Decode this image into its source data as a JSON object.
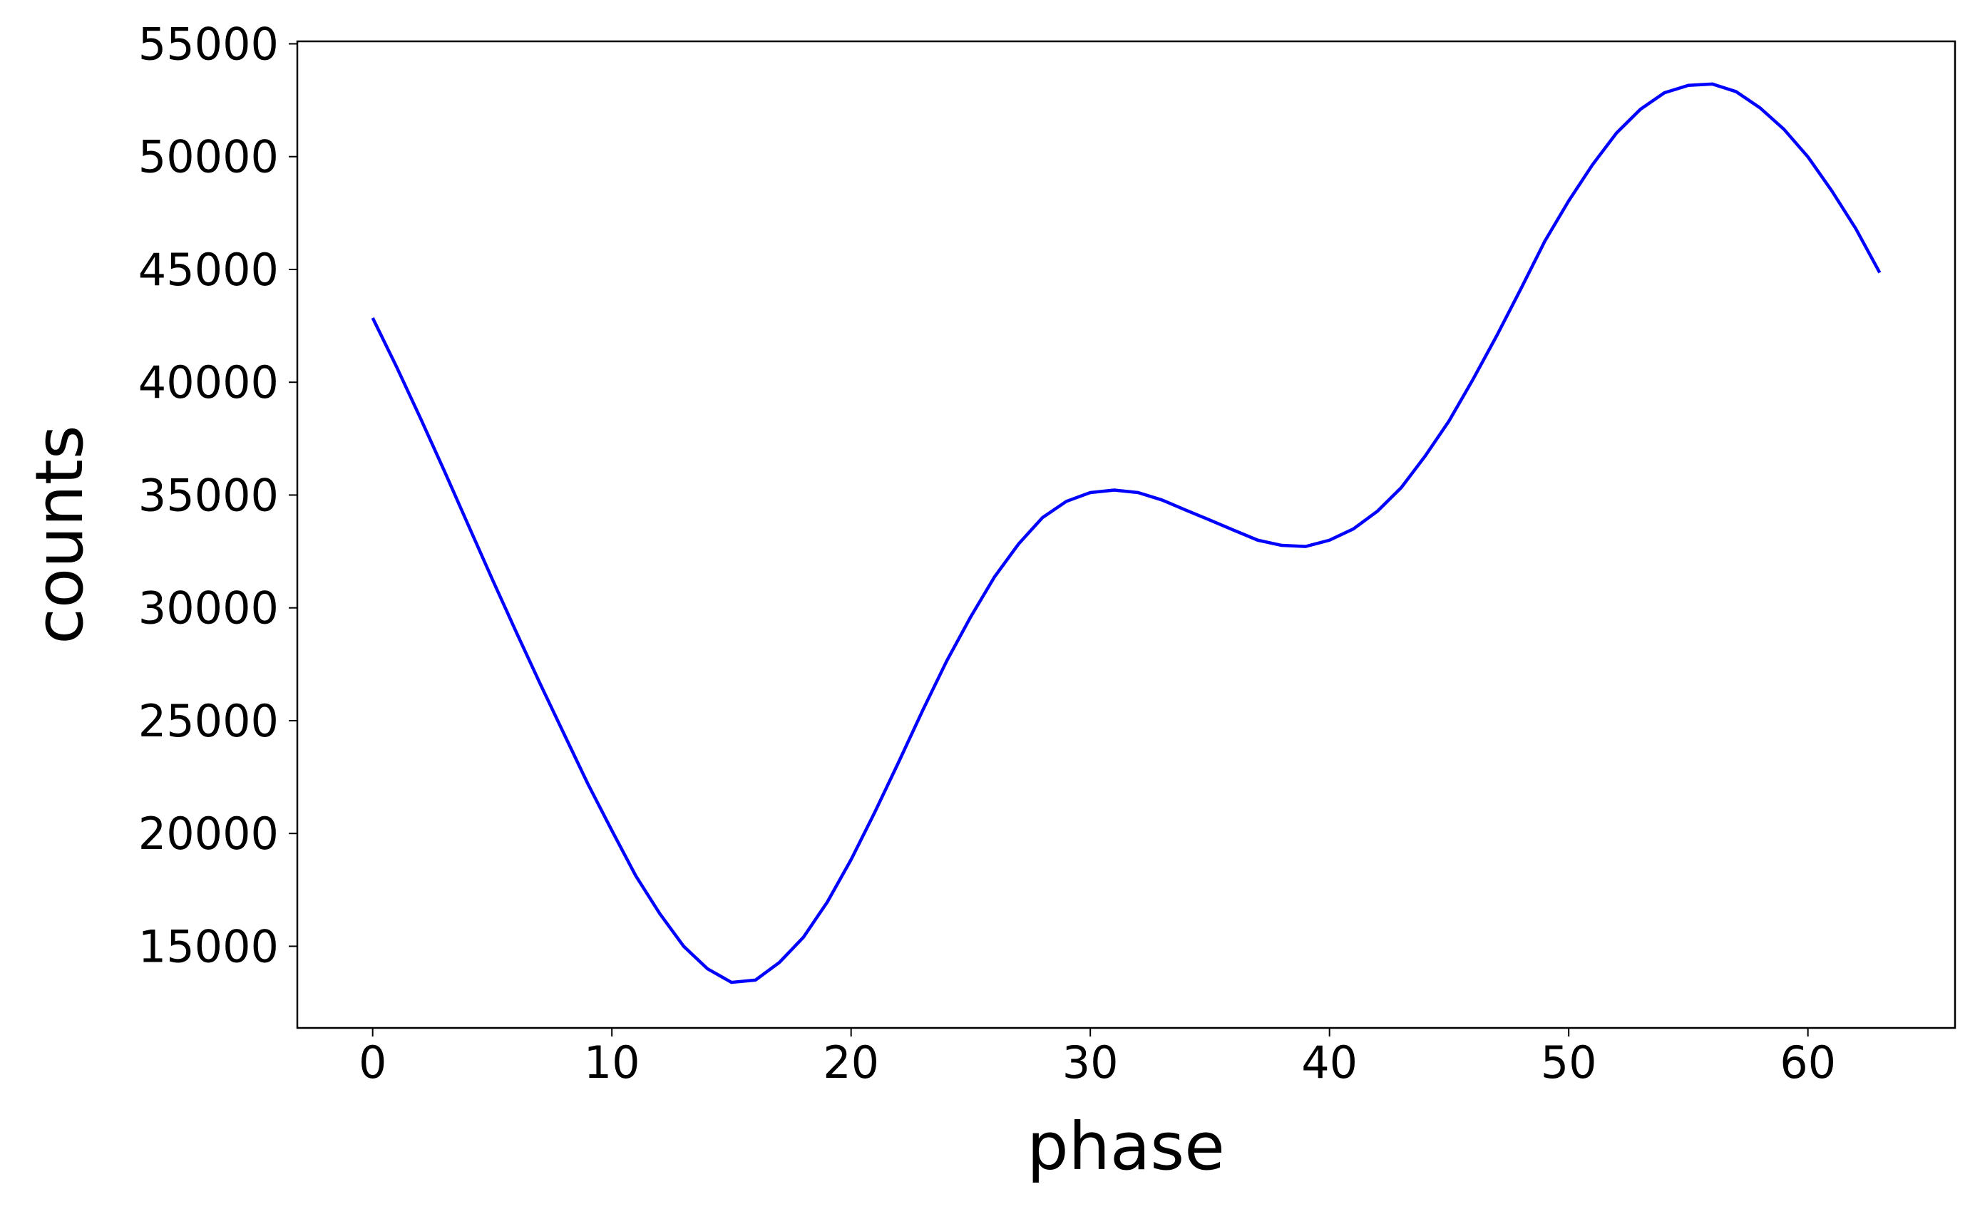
{
  "chart_data": {
    "type": "line",
    "xlabel": "phase",
    "ylabel": "counts",
    "x": [
      0,
      1,
      2,
      3,
      4,
      5,
      6,
      7,
      8,
      9,
      10,
      11,
      12,
      13,
      14,
      15,
      16,
      17,
      18,
      19,
      20,
      21,
      22,
      23,
      24,
      25,
      26,
      27,
      28,
      29,
      30,
      31,
      32,
      33,
      34,
      35,
      36,
      37,
      38,
      39,
      40,
      41,
      42,
      43,
      44,
      45,
      46,
      47,
      48,
      49,
      50,
      51,
      52,
      53,
      54,
      55,
      56,
      57,
      58,
      59,
      60,
      61,
      62,
      63
    ],
    "series": [
      {
        "name": "counts",
        "color": "#0000ff",
        "values": [
          42850,
          40680,
          38400,
          36060,
          33660,
          31270,
          28930,
          26640,
          24410,
          22190,
          20130,
          18120,
          16450,
          15000,
          14000,
          13400,
          13500,
          14280,
          15390,
          16950,
          18840,
          20960,
          23190,
          25470,
          27650,
          29600,
          31380,
          32830,
          34000,
          34720,
          35110,
          35220,
          35110,
          34780,
          34330,
          33890,
          33440,
          33000,
          32770,
          32720,
          33000,
          33500,
          34280,
          35330,
          36730,
          38290,
          40130,
          42080,
          44140,
          46250,
          48040,
          49650,
          51050,
          52100,
          52830,
          53160,
          53220,
          52880,
          52160,
          51210,
          49990,
          48480,
          46810,
          44860
        ]
      }
    ],
    "xlim": [
      -3.15,
      66.15
    ],
    "xticks": [
      0,
      10,
      20,
      30,
      40,
      50,
      60
    ],
    "ylim": [
      11380,
      55110
    ],
    "yticks": [
      15000,
      20000,
      25000,
      30000,
      35000,
      40000,
      45000,
      50000,
      55000
    ],
    "grid": false
  }
}
